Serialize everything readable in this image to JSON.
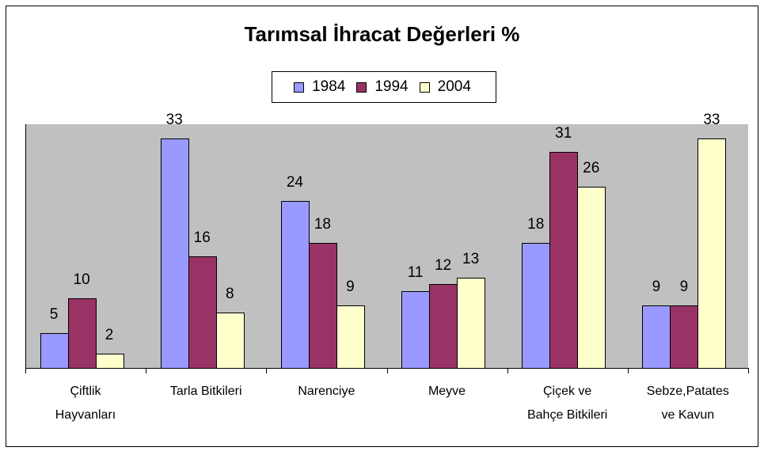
{
  "chart_data": {
    "type": "bar",
    "title": "Tarımsal İhracat Değerleri %",
    "categories": [
      "Çiftlik\nHayvanları",
      "Tarla Bitkileri",
      "Narenciye",
      "Meyve",
      "Çiçek ve\nBahçe Bitkileri",
      "Sebze,Patates\nve Kavun"
    ],
    "series": [
      {
        "name": "1984",
        "color": "#9999ff",
        "values": [
          5,
          33,
          24,
          11,
          18,
          9
        ]
      },
      {
        "name": "1994",
        "color": "#993366",
        "values": [
          10,
          16,
          18,
          12,
          31,
          9
        ]
      },
      {
        "name": "2004",
        "color": "#ffffcc",
        "values": [
          2,
          8,
          9,
          13,
          26,
          33
        ]
      }
    ],
    "ylim": [
      0,
      35
    ],
    "grid": false,
    "legend": "top"
  }
}
